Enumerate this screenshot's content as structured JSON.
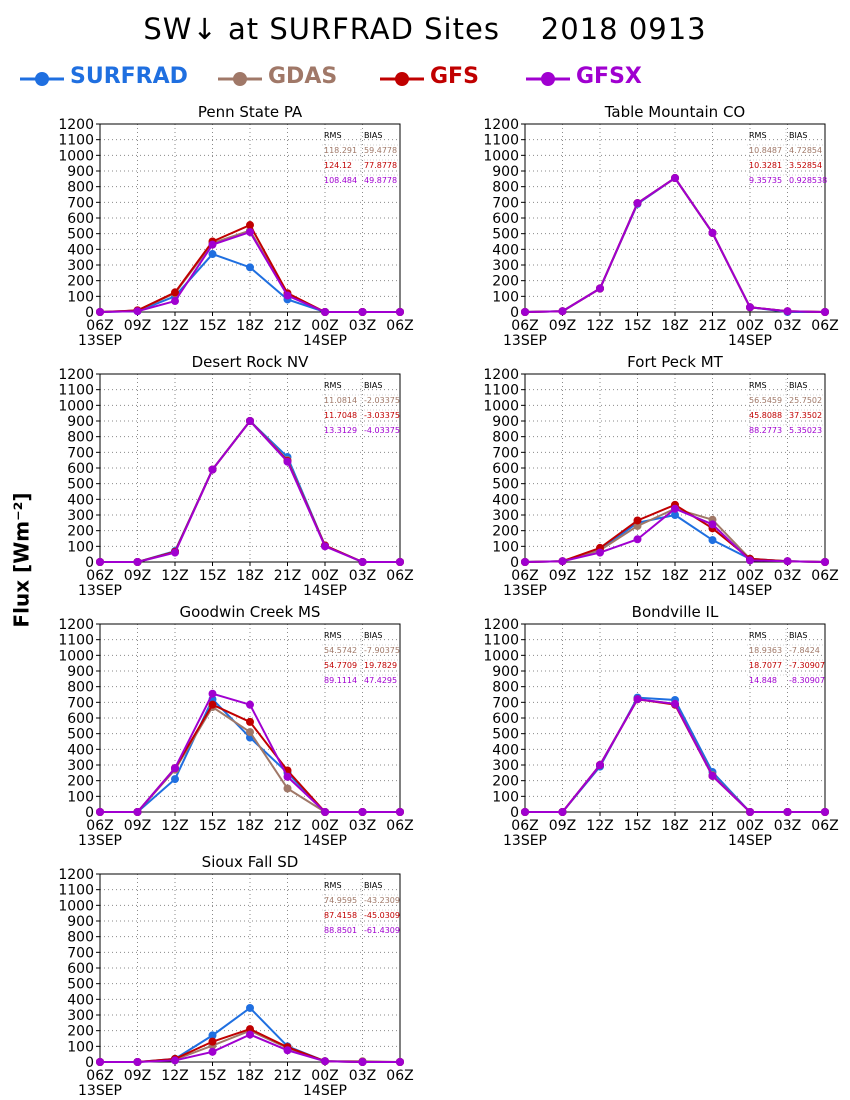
{
  "figure": {
    "title": "SW↓ at SURFRAD Sites    2018 0913",
    "ylabel": "Flux [Wm⁻²]"
  },
  "legend": [
    {
      "name": "SURFRAD",
      "color": "#1f6fe0"
    },
    {
      "name": "GDAS",
      "color": "#a07868"
    },
    {
      "name": "GFS",
      "color": "#c00000"
    },
    {
      "name": "GFSX",
      "color": "#a000d0"
    }
  ],
  "chart_data": [
    {
      "type": "line",
      "title": "Penn State PA",
      "x": [
        "06Z",
        "09Z",
        "12Z",
        "15Z",
        "18Z",
        "21Z",
        "00Z",
        "03Z",
        "06Z"
      ],
      "x_date_labels": [
        "13SEP",
        "",
        "",
        "",
        "",
        "",
        "14SEP",
        "",
        ""
      ],
      "ylim": [
        0,
        1200
      ],
      "yticks": [
        0,
        100,
        200,
        300,
        400,
        500,
        600,
        700,
        800,
        900,
        1000,
        1100,
        1200
      ],
      "grid": true,
      "stats_header": [
        "RMS",
        "BIAS"
      ],
      "stats": [
        {
          "series": "GDAS",
          "rms": "118.291",
          "bias": "59.4778"
        },
        {
          "series": "GFS",
          "rms": "124.12",
          "bias": "77.8778"
        },
        {
          "series": "GFSX",
          "rms": "108.484",
          "bias": "49.8778"
        }
      ],
      "series": [
        {
          "name": "SURFRAD",
          "values": [
            0,
            5,
            100,
            370,
            285,
            80,
            0,
            0,
            0
          ]
        },
        {
          "name": "GDAS",
          "values": [
            0,
            10,
            120,
            440,
            520,
            110,
            0,
            0,
            0
          ]
        },
        {
          "name": "GFS",
          "values": [
            0,
            10,
            125,
            450,
            555,
            120,
            0,
            0,
            0
          ]
        },
        {
          "name": "GFSX",
          "values": [
            0,
            5,
            70,
            430,
            510,
            105,
            0,
            0,
            0
          ]
        }
      ]
    },
    {
      "type": "line",
      "title": "Table Mountain CO",
      "x": [
        "06Z",
        "09Z",
        "12Z",
        "15Z",
        "18Z",
        "21Z",
        "00Z",
        "03Z",
        "06Z"
      ],
      "x_date_labels": [
        "13SEP",
        "",
        "",
        "",
        "",
        "",
        "14SEP",
        "",
        ""
      ],
      "ylim": [
        0,
        1200
      ],
      "yticks": [
        0,
        100,
        200,
        300,
        400,
        500,
        600,
        700,
        800,
        900,
        1000,
        1100,
        1200
      ],
      "grid": true,
      "stats_header": [
        "RMS",
        "BIAS"
      ],
      "stats": [
        {
          "series": "GDAS",
          "rms": "10.8487",
          "bias": "4.72854"
        },
        {
          "series": "GFS",
          "rms": "10.3281",
          "bias": "3.52854"
        },
        {
          "series": "GFSX",
          "rms": "9.35735",
          "bias": "0.928538"
        }
      ],
      "series": [
        {
          "name": "SURFRAD",
          "values": [
            0,
            5,
            150,
            690,
            855,
            505,
            30,
            0,
            0
          ]
        },
        {
          "name": "GDAS",
          "values": [
            0,
            5,
            150,
            695,
            855,
            505,
            30,
            5,
            0
          ]
        },
        {
          "name": "GFS",
          "values": [
            0,
            5,
            150,
            695,
            855,
            505,
            30,
            5,
            0
          ]
        },
        {
          "name": "GFSX",
          "values": [
            0,
            5,
            150,
            695,
            855,
            505,
            30,
            5,
            0
          ]
        }
      ]
    },
    {
      "type": "line",
      "title": "Desert Rock NV",
      "x": [
        "06Z",
        "09Z",
        "12Z",
        "15Z",
        "18Z",
        "21Z",
        "00Z",
        "03Z",
        "06Z"
      ],
      "x_date_labels": [
        "13SEP",
        "",
        "",
        "",
        "",
        "",
        "14SEP",
        "",
        ""
      ],
      "ylim": [
        0,
        1200
      ],
      "yticks": [
        0,
        100,
        200,
        300,
        400,
        500,
        600,
        700,
        800,
        900,
        1000,
        1100,
        1200
      ],
      "grid": true,
      "stats_header": [
        "RMS",
        "BIAS"
      ],
      "stats": [
        {
          "series": "GDAS",
          "rms": "11.0814",
          "bias": "-2.03375"
        },
        {
          "series": "GFS",
          "rms": "11.7048",
          "bias": "-3.03375"
        },
        {
          "series": "GFSX",
          "rms": "13.3129",
          "bias": "-4.03375"
        }
      ],
      "series": [
        {
          "name": "SURFRAD",
          "values": [
            0,
            0,
            70,
            590,
            900,
            670,
            105,
            0,
            0
          ]
        },
        {
          "name": "GDAS",
          "values": [
            0,
            0,
            65,
            590,
            900,
            650,
            105,
            0,
            0
          ]
        },
        {
          "name": "GFS",
          "values": [
            0,
            0,
            65,
            590,
            900,
            645,
            105,
            0,
            0
          ]
        },
        {
          "name": "GFSX",
          "values": [
            0,
            0,
            60,
            590,
            900,
            640,
            100,
            0,
            0
          ]
        }
      ]
    },
    {
      "type": "line",
      "title": "Fort Peck MT",
      "x": [
        "06Z",
        "09Z",
        "12Z",
        "15Z",
        "18Z",
        "21Z",
        "00Z",
        "03Z",
        "06Z"
      ],
      "x_date_labels": [
        "13SEP",
        "",
        "",
        "",
        "",
        "",
        "14SEP",
        "",
        ""
      ],
      "ylim": [
        0,
        1200
      ],
      "yticks": [
        0,
        100,
        200,
        300,
        400,
        500,
        600,
        700,
        800,
        900,
        1000,
        1100,
        1200
      ],
      "grid": true,
      "stats_header": [
        "RMS",
        "BIAS"
      ],
      "stats": [
        {
          "series": "GDAS",
          "rms": "56.5459",
          "bias": "25.7502"
        },
        {
          "series": "GFS",
          "rms": "45.8088",
          "bias": "37.3502"
        },
        {
          "series": "GFSX",
          "rms": "88.2773",
          "bias": "5.35023"
        }
      ],
      "series": [
        {
          "name": "SURFRAD",
          "values": [
            0,
            5,
            80,
            250,
            300,
            140,
            20,
            5,
            0
          ]
        },
        {
          "name": "GDAS",
          "values": [
            0,
            5,
            75,
            230,
            340,
            270,
            20,
            5,
            0
          ]
        },
        {
          "name": "GFS",
          "values": [
            0,
            5,
            90,
            265,
            365,
            215,
            20,
            5,
            0
          ]
        },
        {
          "name": "GFSX",
          "values": [
            0,
            5,
            60,
            145,
            340,
            240,
            10,
            5,
            0
          ]
        }
      ]
    },
    {
      "type": "line",
      "title": "Goodwin Creek MS",
      "x": [
        "06Z",
        "09Z",
        "12Z",
        "15Z",
        "18Z",
        "21Z",
        "00Z",
        "03Z",
        "06Z"
      ],
      "x_date_labels": [
        "13SEP",
        "",
        "",
        "",
        "",
        "",
        "14SEP",
        "",
        ""
      ],
      "ylim": [
        0,
        1200
      ],
      "yticks": [
        0,
        100,
        200,
        300,
        400,
        500,
        600,
        700,
        800,
        900,
        1000,
        1100,
        1200
      ],
      "grid": true,
      "stats_header": [
        "RMS",
        "BIAS"
      ],
      "stats": [
        {
          "series": "GDAS",
          "rms": "54.5742",
          "bias": "-7.90375"
        },
        {
          "series": "GFS",
          "rms": "54.7709",
          "bias": "19.7829"
        },
        {
          "series": "GFSX",
          "rms": "89.1114",
          "bias": "47.4295"
        }
      ],
      "series": [
        {
          "name": "SURFRAD",
          "values": [
            0,
            0,
            210,
            720,
            475,
            250,
            0,
            0,
            0
          ]
        },
        {
          "name": "GDAS",
          "values": [
            0,
            0,
            270,
            670,
            510,
            150,
            0,
            0,
            0
          ]
        },
        {
          "name": "GFS",
          "values": [
            0,
            0,
            280,
            685,
            575,
            265,
            0,
            0,
            0
          ]
        },
        {
          "name": "GFSX",
          "values": [
            0,
            0,
            280,
            755,
            685,
            225,
            0,
            0,
            0
          ]
        }
      ]
    },
    {
      "type": "line",
      "title": "Bondville IL",
      "x": [
        "06Z",
        "09Z",
        "12Z",
        "15Z",
        "18Z",
        "21Z",
        "00Z",
        "03Z",
        "06Z"
      ],
      "x_date_labels": [
        "13SEP",
        "",
        "",
        "",
        "",
        "",
        "14SEP",
        "",
        ""
      ],
      "ylim": [
        0,
        1200
      ],
      "yticks": [
        0,
        100,
        200,
        300,
        400,
        500,
        600,
        700,
        800,
        900,
        1000,
        1100,
        1200
      ],
      "grid": true,
      "stats_header": [
        "RMS",
        "BIAS"
      ],
      "stats": [
        {
          "series": "GDAS",
          "rms": "18.9363",
          "bias": "-7.8424"
        },
        {
          "series": "GFS",
          "rms": "18.7077",
          "bias": "-7.30907"
        },
        {
          "series": "GFSX",
          "rms": "14.848",
          "bias": "-8.30907"
        }
      ],
      "series": [
        {
          "name": "SURFRAD",
          "values": [
            0,
            0,
            290,
            730,
            715,
            255,
            0,
            0,
            0
          ]
        },
        {
          "name": "GDAS",
          "values": [
            0,
            0,
            300,
            720,
            690,
            235,
            0,
            0,
            0
          ]
        },
        {
          "name": "GFS",
          "values": [
            0,
            0,
            300,
            720,
            685,
            230,
            0,
            0,
            0
          ]
        },
        {
          "name": "GFSX",
          "values": [
            0,
            0,
            300,
            720,
            690,
            230,
            0,
            0,
            0
          ]
        }
      ]
    },
    {
      "type": "line",
      "title": "Sioux Fall SD",
      "x": [
        "06Z",
        "09Z",
        "12Z",
        "15Z",
        "18Z",
        "21Z",
        "00Z",
        "03Z",
        "06Z"
      ],
      "x_date_labels": [
        "13SEP",
        "",
        "",
        "",
        "",
        "",
        "14SEP",
        "",
        ""
      ],
      "ylim": [
        0,
        1200
      ],
      "yticks": [
        0,
        100,
        200,
        300,
        400,
        500,
        600,
        700,
        800,
        900,
        1000,
        1100,
        1200
      ],
      "grid": true,
      "stats_header": [
        "RMS",
        "BIAS"
      ],
      "stats": [
        {
          "series": "GDAS",
          "rms": "74.9595",
          "bias": "-43.2309"
        },
        {
          "series": "GFS",
          "rms": "87.4158",
          "bias": "-45.0309"
        },
        {
          "series": "GFSX",
          "rms": "88.8501",
          "bias": "-61.4309"
        }
      ],
      "series": [
        {
          "name": "SURFRAD",
          "values": [
            0,
            0,
            20,
            170,
            345,
            100,
            5,
            0,
            0
          ]
        },
        {
          "name": "GDAS",
          "values": [
            0,
            0,
            15,
            105,
            200,
            90,
            5,
            5,
            0
          ]
        },
        {
          "name": "GFS",
          "values": [
            0,
            0,
            20,
            130,
            210,
            95,
            5,
            0,
            0
          ]
        },
        {
          "name": "GFSX",
          "values": [
            0,
            0,
            10,
            65,
            175,
            75,
            5,
            0,
            0
          ]
        }
      ]
    }
  ]
}
